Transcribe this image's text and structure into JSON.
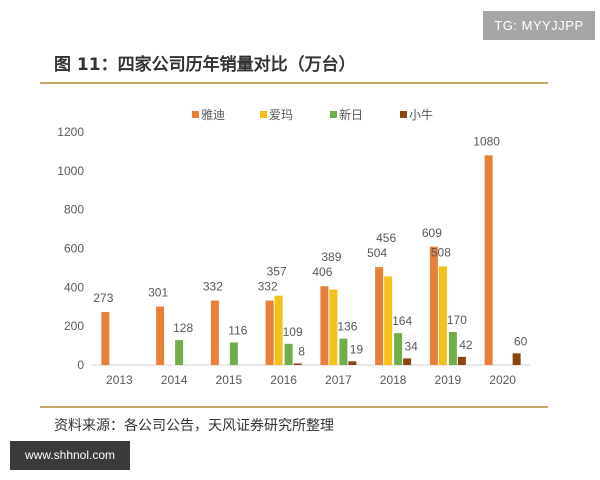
{
  "watermark_top": "TG: MYYJJPP",
  "watermark_bottom": "www.shhnol.com",
  "figure_title": "图 11：四家公司历年销量对比（万台）",
  "source": "资料来源：各公司公告，天风证券研究所整理",
  "chart_data": {
    "type": "bar",
    "title": "图 11：四家公司历年销量对比（万台）",
    "categories": [
      "2013",
      "2014",
      "2015",
      "2016",
      "2017",
      "2018",
      "2019",
      "2020"
    ],
    "series": [
      {
        "name": "雅迪",
        "color": "#e8803a",
        "values": [
          273,
          301,
          332,
          332,
          406,
          504,
          609,
          1080
        ]
      },
      {
        "name": "爱玛",
        "color": "#f5c018",
        "values": [
          null,
          null,
          null,
          357,
          389,
          456,
          508,
          null
        ]
      },
      {
        "name": "新日",
        "color": "#72ad4c",
        "values": [
          null,
          128,
          116,
          109,
          136,
          164,
          170,
          null
        ]
      },
      {
        "name": "小牛",
        "color": "#8b4513",
        "values": [
          null,
          null,
          null,
          8,
          19,
          34,
          42,
          60
        ]
      }
    ],
    "ylim": [
      0,
      1200
    ],
    "yticks": [
      0,
      200,
      400,
      600,
      800,
      1000,
      1200
    ],
    "grid": false,
    "legend": "top",
    "data_labels": true
  }
}
